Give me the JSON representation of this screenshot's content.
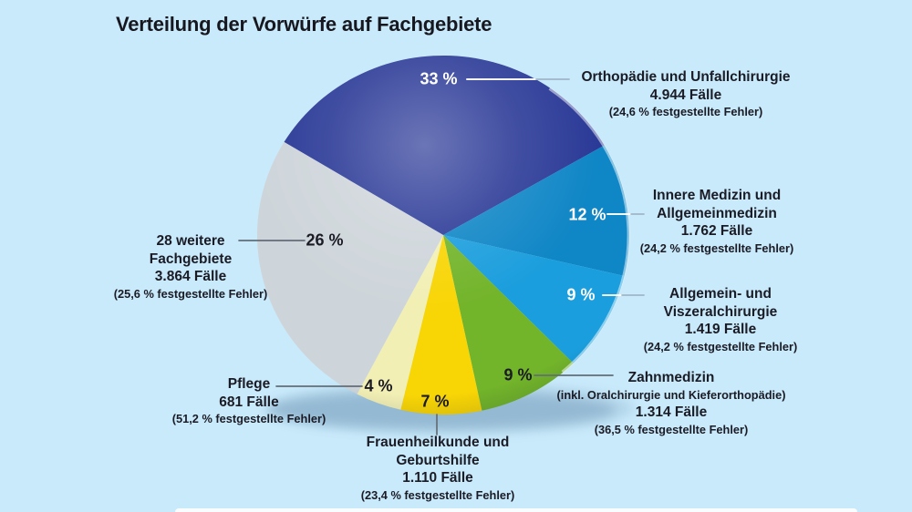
{
  "title": "Verteilung der Vorwürfe auf Fachgebiete",
  "colors": {
    "background": "#c9eafb",
    "text": "#1b1b25",
    "percent_label_light": "#ffffff"
  },
  "chart_data": {
    "type": "pie",
    "title": "Verteilung der Vorwürfe auf Fachgebiete",
    "start_angle_deg": -58.8,
    "legend_position": "around",
    "slices": [
      {
        "label": "Orthopädie und Unfallchirurgie",
        "percent": 33,
        "percent_label": "33 %",
        "cases": "4.944 Fälle",
        "error_rate": "(24,6 % festgestellte Fehler)",
        "color": "#2b3a97"
      },
      {
        "label": "Innere Medizin und Allgemeinmedizin",
        "percent": 12,
        "percent_label": "12 %",
        "cases": "1.762 Fälle",
        "error_rate": "(24,2 % festgestellte Fehler)",
        "color": "#0f86c6"
      },
      {
        "label": "Allgemein- und Viszeralchirurgie",
        "percent": 9,
        "percent_label": "9 %",
        "cases": "1.419 Fälle",
        "error_rate": "(24,2 % festgestellte Fehler)",
        "color": "#1b9edd"
      },
      {
        "label": "Zahnmedizin",
        "note": "(inkl. Oralchirurgie und Kieferorthopädie)",
        "percent": 9,
        "percent_label": "9 %",
        "cases": "1.314 Fälle",
        "error_rate": "(36,5 % festgestellte Fehler)",
        "color": "#72b42a"
      },
      {
        "label": "Frauenheilkunde und Geburtshilfe",
        "percent": 7,
        "percent_label": "7 %",
        "cases": "1.110 Fälle",
        "error_rate": "(23,4 % festgestellte Fehler)",
        "color": "#f8d505"
      },
      {
        "label": "Pflege",
        "percent": 4,
        "percent_label": "4 %",
        "cases": "681 Fälle",
        "error_rate": "(51,2 % festgestellte Fehler)",
        "color": "#f2efb4"
      },
      {
        "label": "28 weitere Fachgebiete",
        "percent": 26,
        "percent_label": "26 %",
        "cases": "3.864 Fälle",
        "error_rate": "(25,6 % festgestellte Fehler)",
        "color": "#ced5da"
      }
    ]
  }
}
